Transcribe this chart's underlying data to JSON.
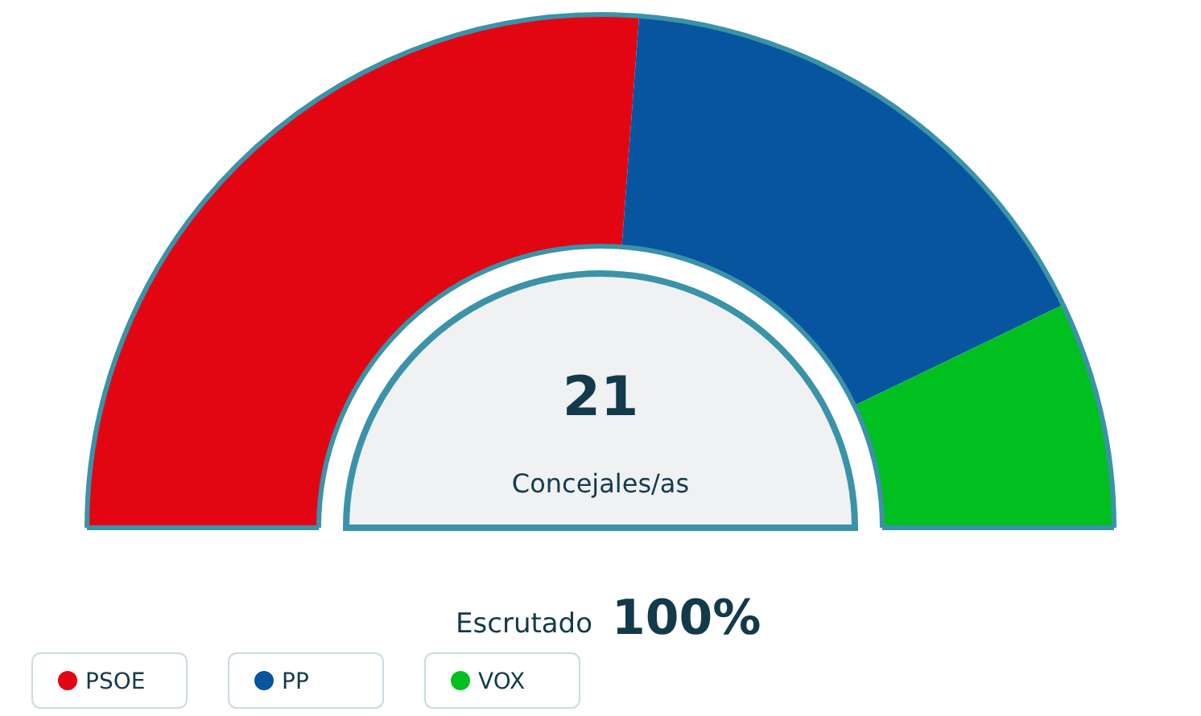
{
  "chart_data": {
    "type": "donut",
    "categories": [
      "PSOE",
      "PP",
      "VOX"
    ],
    "values": [
      52.4,
      33.3,
      14.3
    ],
    "colors": [
      "#e20613",
      "#07549f",
      "#00c020"
    ],
    "annotations": [
      "21",
      "Concejales/as",
      "Escrutado",
      "100%"
    ],
    "legend": "bottom"
  }
}
